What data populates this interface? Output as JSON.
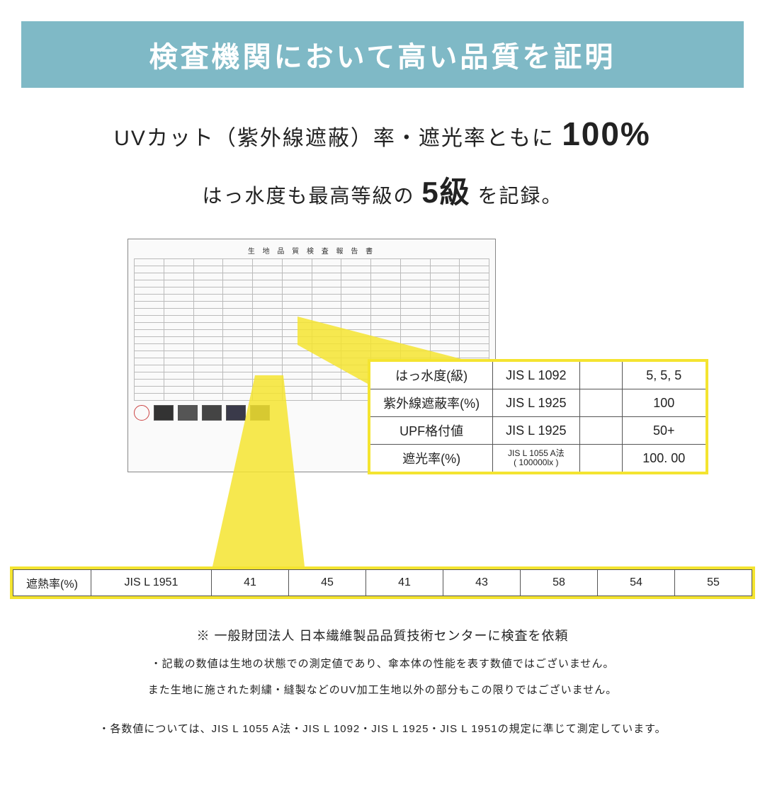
{
  "colors": {
    "banner_bg": "#7fb9c6",
    "banner_text": "#ffffff",
    "highlight_border": "#f4e430",
    "text": "#222222",
    "report_border": "#888888"
  },
  "banner": "検査機関において高い品質を証明",
  "headline": {
    "pre": "UVカット（紫外線遮蔽）率・遮光率ともに",
    "big": "100%"
  },
  "subhead": {
    "pre": "はっ水度も最高等級の",
    "big": "5級",
    "post": "を記録。"
  },
  "report_title": "生 地 品 質 検 査 報 告 書",
  "hl_table": {
    "rows": [
      {
        "label": "はっ水度(級)",
        "std": "JIS L 1092",
        "val": "5, 5, 5"
      },
      {
        "label": "紫外線遮蔽率(%)",
        "std": "JIS L 1925",
        "val": "100"
      },
      {
        "label": "UPF格付値",
        "std": "JIS L 1925",
        "val": "50+"
      },
      {
        "label": "遮光率(%)",
        "std": "JIS L 1055 A法\n( 100000lx )",
        "val": "100. 00"
      }
    ]
  },
  "strip": {
    "label": "遮熱率(%)",
    "std": "JIS L 1951",
    "values": [
      "41",
      "45",
      "41",
      "43",
      "58",
      "54",
      "55"
    ]
  },
  "notes": {
    "n1": "※ 一般財団法人 日本繊維製品品質技術センターに検査を依頼",
    "n2": "・記載の数値は生地の状態での測定値であり、傘本体の性能を表す数値ではございません。",
    "n3": "また生地に施された刺繍・縫製などのUV加工生地以外の部分もこの限りではございません。",
    "n4": "・各数値については、JIS L 1055 A法・JIS L 1092・JIS L 1925・JIS L 1951の規定に準じて測定しています。"
  }
}
